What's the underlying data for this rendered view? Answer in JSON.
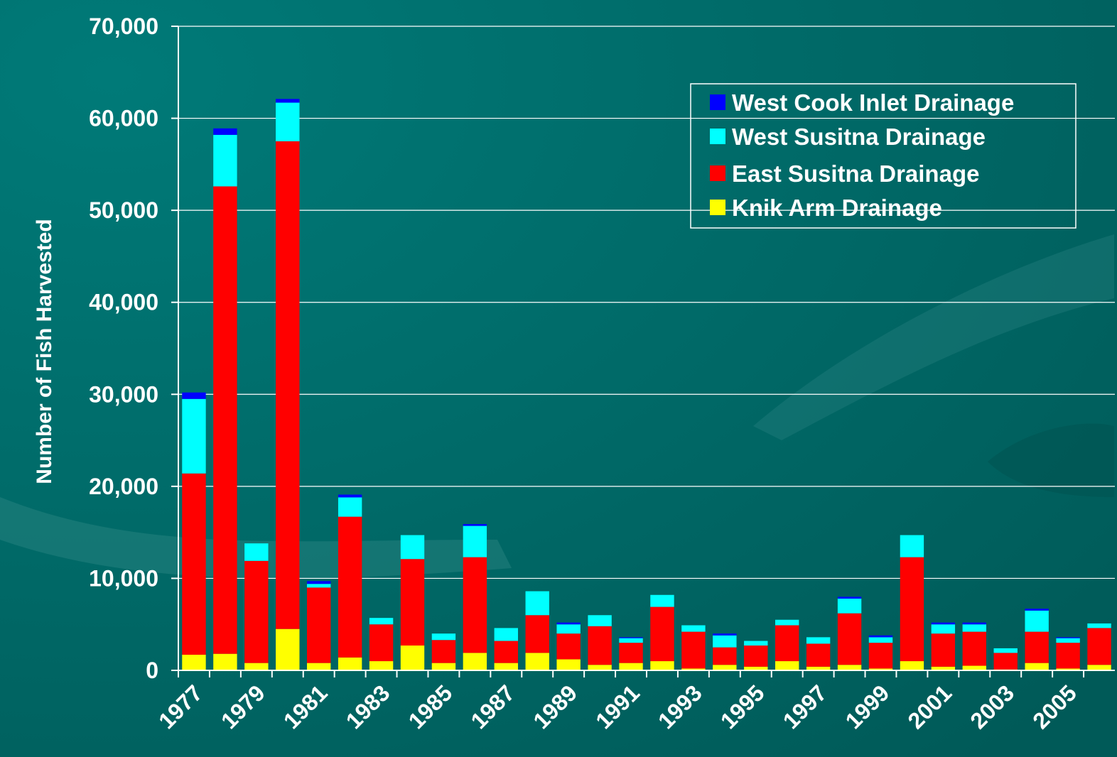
{
  "chart_data": {
    "type": "stacked_bar",
    "y_axis_label": "Number of Fish Harvested",
    "categories": [
      "1977",
      null,
      "1979",
      null,
      "1981",
      null,
      "1983",
      null,
      "1985",
      null,
      "1987",
      null,
      "1989",
      null,
      "1991",
      null,
      "1993",
      null,
      "1995",
      null,
      "1997",
      null,
      "1999",
      null,
      "2001",
      null,
      "2003",
      null,
      "2005",
      null
    ],
    "series": [
      {
        "name": "Knik Arm Drainage",
        "color": "#ffff00",
        "values": [
          1700,
          1800,
          800,
          4500,
          800,
          1400,
          1000,
          2700,
          800,
          1900,
          800,
          1900,
          1200,
          600,
          800,
          1000,
          200,
          600,
          400,
          1000,
          400,
          600,
          200,
          1000,
          400,
          500,
          100,
          800,
          200,
          600
        ]
      },
      {
        "name": "East Susitna Drainage",
        "color": "#ff0000",
        "values": [
          19700,
          50800,
          11100,
          53000,
          8200,
          15300,
          4000,
          9400,
          2500,
          10400,
          2400,
          4100,
          2800,
          4200,
          2200,
          5900,
          4000,
          1900,
          2300,
          3900,
          2500,
          5600,
          2800,
          11300,
          3600,
          3700,
          1800,
          3400,
          2800,
          4000
        ]
      },
      {
        "name": "West Susitna Drainage",
        "color": "#00ffff",
        "values": [
          8100,
          5600,
          1900,
          4200,
          400,
          2100,
          700,
          2600,
          700,
          3400,
          1400,
          2600,
          1000,
          1200,
          500,
          1300,
          700,
          1300,
          500,
          600,
          700,
          1600,
          600,
          2400,
          1000,
          800,
          500,
          2300,
          500,
          500
        ]
      },
      {
        "name": "West Cook Inlet Drainage",
        "color": "#0000ff",
        "values": [
          700,
          700,
          0,
          400,
          300,
          300,
          0,
          0,
          0,
          200,
          0,
          0,
          200,
          0,
          100,
          0,
          0,
          200,
          0,
          0,
          0,
          200,
          200,
          0,
          200,
          200,
          0,
          200,
          100,
          0
        ]
      }
    ],
    "ylim": [
      0,
      70000
    ],
    "yticks": [
      0,
      {
        "value": 10000,
        "label": "10,000"
      },
      {
        "value": 20000,
        "label": "20,000"
      },
      {
        "value": 30000,
        "label": "30,000"
      },
      {
        "value": 40000,
        "label": "40,000"
      },
      {
        "value": 50000,
        "label": "50,000"
      },
      {
        "value": 60000,
        "label": "60,000"
      },
      {
        "value": 70000,
        "label": "70,000"
      }
    ],
    "grid": true,
    "legend": "upper right"
  }
}
